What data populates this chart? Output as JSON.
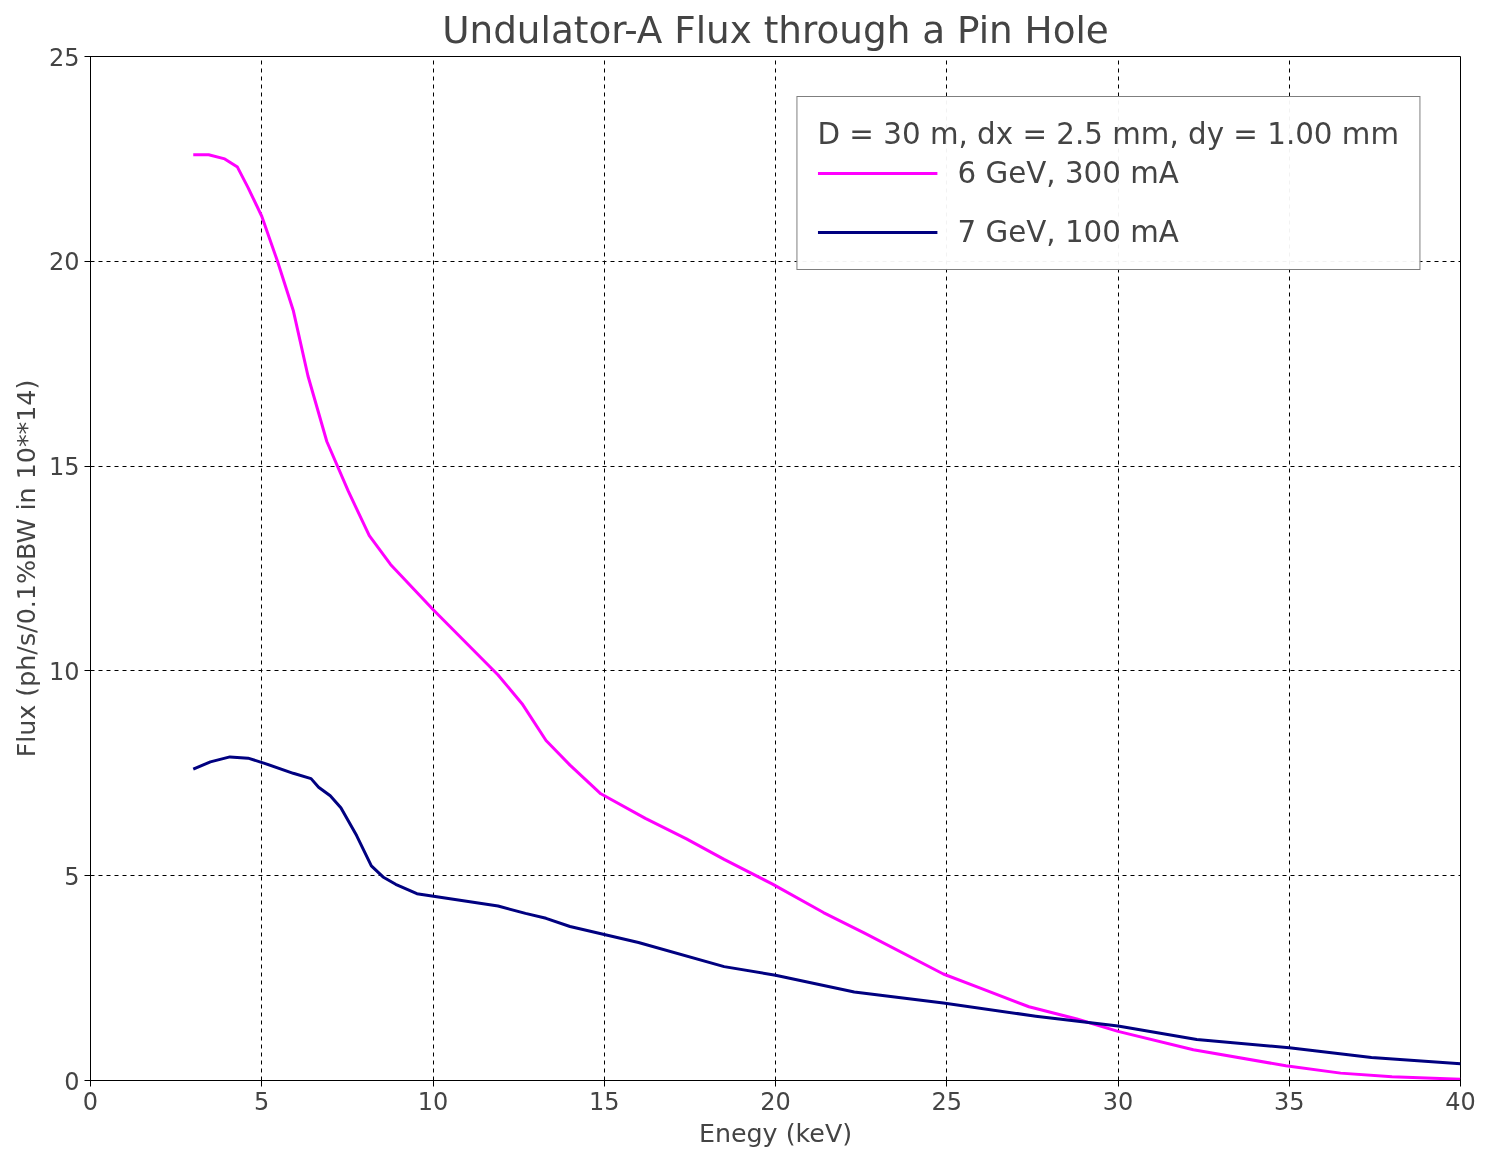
{
  "chart_data": {
    "type": "line",
    "title": "Undulator-A Flux through a Pin Hole",
    "xlabel": "Enegy (keV)",
    "ylabel": "Flux (ph/s/0.1%BW in 10**14)",
    "legend_title": "D = 30 m, dx = 2.5 mm, dy = 1.00 mm",
    "xlim": [
      0,
      40
    ],
    "xticks": [
      0,
      5,
      10,
      15,
      20,
      25,
      30,
      35,
      40
    ],
    "ylim": [
      0,
      25
    ],
    "yticks": [
      0,
      5,
      10,
      15,
      20,
      25
    ],
    "grid": true,
    "legend": "top right",
    "marker": "none",
    "line_style": "solid",
    "series": [
      {
        "name": "6 GeV, 300 mA",
        "color": "#ff00ff",
        "x": [
          3.0,
          3.45,
          3.92,
          4.29,
          4.6,
          5.0,
          5.46,
          5.92,
          6.35,
          6.9,
          7.52,
          8.14,
          8.76,
          10.0,
          11.9,
          12.6,
          13.3,
          14.0,
          14.9,
          16.2,
          17.4,
          18.5,
          19.9,
          21.4,
          22.6,
          24.9,
          26.0,
          27.4,
          28.8,
          30.0,
          32.2,
          34.9,
          36.5,
          38.0,
          40.0
        ],
        "values": [
          22.6,
          22.6,
          22.5,
          22.3,
          21.8,
          21.1,
          20.0,
          18.8,
          17.2,
          15.6,
          14.4,
          13.3,
          12.6,
          11.5,
          9.9,
          9.2,
          8.3,
          7.7,
          7.0,
          6.4,
          5.9,
          5.4,
          4.8,
          4.1,
          3.6,
          2.6,
          2.25,
          1.8,
          1.5,
          1.2,
          0.75,
          0.36,
          0.18,
          0.09,
          0.03
        ]
      },
      {
        "name": "7 GeV, 100 mA",
        "color": "#000080",
        "x": [
          3.0,
          3.5,
          4.07,
          4.6,
          5.06,
          5.92,
          6.44,
          6.66,
          7.0,
          7.31,
          7.77,
          8.2,
          8.54,
          8.91,
          9.53,
          11.9,
          12.7,
          13.3,
          14.0,
          16.0,
          18.5,
          20.0,
          22.3,
          24.9,
          27.6,
          30.0,
          32.3,
          35.0,
          37.4,
          40.0
        ],
        "values": [
          7.6,
          7.78,
          7.9,
          7.87,
          7.75,
          7.5,
          7.37,
          7.16,
          6.95,
          6.66,
          5.98,
          5.24,
          4.97,
          4.79,
          4.56,
          4.26,
          4.08,
          3.96,
          3.76,
          3.37,
          2.78,
          2.57,
          2.16,
          1.89,
          1.57,
          1.33,
          1.0,
          0.8,
          0.56,
          0.41
        ]
      }
    ]
  }
}
